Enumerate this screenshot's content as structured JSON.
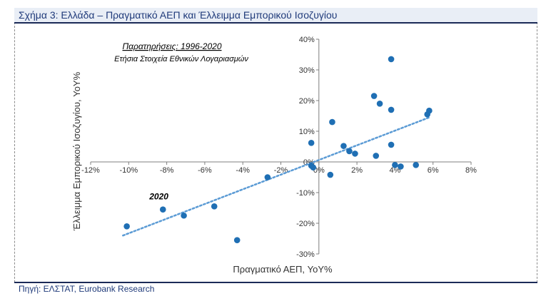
{
  "header": {
    "title": "Σχήμα 3: Ελλάδα – Πραγματικό ΑΕΠ και Έλλειμμα Εμπορικού Ισοζυγίου"
  },
  "footer": {
    "source": "Πηγή: ΕΛΣΤΑΤ, Eurobank Research"
  },
  "colors": {
    "point": "#1f6fb4",
    "trend": "#5b9bd5",
    "header_text": "#1f3a7a",
    "rule": "#1b2a57"
  },
  "chart_data": {
    "type": "scatter",
    "title": "",
    "xlabel": "Πραγματικό ΑΕΠ, YoY%",
    "ylabel": "Έλλειμμα Εμπορικού Ισοζυγίου, YoY%",
    "xlim": [
      -12,
      8
    ],
    "ylim": [
      -30,
      40
    ],
    "x_ticks": [
      "-12%",
      "-10%",
      "-8%",
      "-6%",
      "-4%",
      "-2%",
      "0%",
      "2%",
      "4%",
      "6%",
      "8%"
    ],
    "y_ticks": [
      "-30%",
      "-20%",
      "-10%",
      "0%",
      "10%",
      "20%",
      "30%",
      "40%"
    ],
    "annotation_title": "Παρατηρήσεις: 1996-2020",
    "annotation_subtitle": "Ετήσια Στοιχεία Εθνικών Λογαριασμών",
    "point_label": "2020",
    "point_label_x": -8.3,
    "point_label_y": -15.5,
    "trendline": {
      "style": "dotted",
      "x": [
        -10.3,
        5.8
      ],
      "y": [
        -24,
        14.5
      ]
    },
    "grid": false,
    "points": [
      {
        "x": -10.1,
        "y": -21
      },
      {
        "x": -8.2,
        "y": -15.5
      },
      {
        "x": -7.1,
        "y": -17.5
      },
      {
        "x": -5.5,
        "y": -14.5
      },
      {
        "x": -4.3,
        "y": -25.5
      },
      {
        "x": -2.7,
        "y": -5
      },
      {
        "x": -0.4,
        "y": 6.2
      },
      {
        "x": -0.4,
        "y": -1.2
      },
      {
        "x": -0.3,
        "y": -1.8
      },
      {
        "x": 0.6,
        "y": -4.2
      },
      {
        "x": 0.7,
        "y": 13
      },
      {
        "x": 1.3,
        "y": 5.2
      },
      {
        "x": 1.6,
        "y": 3.5
      },
      {
        "x": 1.9,
        "y": 2.7
      },
      {
        "x": 2.9,
        "y": 21.5
      },
      {
        "x": 3.0,
        "y": 2
      },
      {
        "x": 3.2,
        "y": 19
      },
      {
        "x": 3.8,
        "y": 33.5
      },
      {
        "x": 3.8,
        "y": 17
      },
      {
        "x": 3.8,
        "y": 5.6
      },
      {
        "x": 4.0,
        "y": -1
      },
      {
        "x": 4.3,
        "y": -1.5
      },
      {
        "x": 5.1,
        "y": -1
      },
      {
        "x": 5.7,
        "y": 15.5
      },
      {
        "x": 5.8,
        "y": 16.7
      }
    ]
  }
}
